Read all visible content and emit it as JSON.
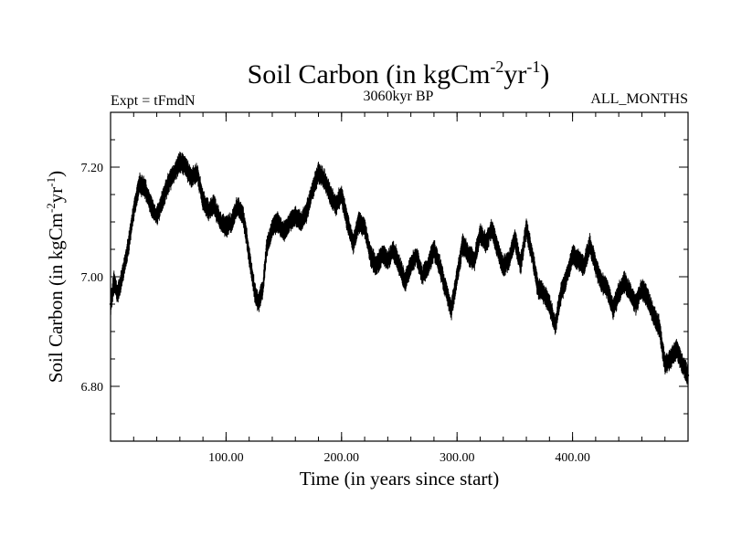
{
  "chart_data": {
    "type": "line",
    "title": {
      "text": "Soil Carbon (in kgCm",
      "sup1": "-2",
      "mid": "yr",
      "sup2": "-1",
      "end": ")"
    },
    "subtitle_left": "Expt = tFmdN",
    "subtitle_center": "3060kyr BP",
    "subtitle_right": "ALL_MONTHS",
    "xlabel": "Time (in years since start)",
    "ylabel": {
      "text": "Soil Carbon (in kgCm",
      "sup1": "-2",
      "mid": "yr",
      "sup2": "-1",
      "end": ")"
    },
    "xlim": [
      0,
      500
    ],
    "ylim": [
      6.7,
      7.3
    ],
    "x_ticks": [
      100,
      200,
      300,
      400
    ],
    "x_tick_labels": [
      "100.00",
      "200.00",
      "300.00",
      "400.00"
    ],
    "x_minor_step": 20,
    "y_ticks": [
      6.8,
      7.0,
      7.2
    ],
    "y_tick_labels": [
      "6.80",
      "7.00",
      "7.20"
    ],
    "y_minor_step": 0.05,
    "grid": false,
    "line_color": "#000000",
    "series": [
      {
        "x": [
          0,
          3,
          6,
          10,
          15,
          20,
          25,
          30,
          35,
          40,
          45,
          50,
          55,
          60,
          65,
          70,
          75,
          80,
          85,
          90,
          95,
          100,
          105,
          110,
          115,
          120,
          125,
          128,
          132,
          135,
          140,
          145,
          150,
          155,
          160,
          165,
          170,
          175,
          180,
          185,
          190,
          195,
          200,
          205,
          210,
          215,
          220,
          225,
          230,
          235,
          240,
          245,
          250,
          255,
          260,
          265,
          270,
          275,
          280,
          285,
          290,
          295,
          300,
          305,
          310,
          315,
          320,
          325,
          330,
          335,
          340,
          345,
          350,
          355,
          360,
          365,
          370,
          375,
          380,
          385,
          390,
          395,
          400,
          405,
          410,
          415,
          420,
          425,
          430,
          435,
          440,
          445,
          450,
          455,
          460,
          465,
          470,
          475,
          480,
          485,
          490,
          495,
          500
        ],
        "y": [
          6.95,
          6.99,
          6.97,
          7.0,
          7.05,
          7.12,
          7.17,
          7.16,
          7.13,
          7.11,
          7.14,
          7.17,
          7.19,
          7.21,
          7.2,
          7.18,
          7.19,
          7.14,
          7.12,
          7.13,
          7.1,
          7.09,
          7.1,
          7.13,
          7.11,
          7.04,
          6.97,
          6.95,
          6.98,
          7.05,
          7.09,
          7.1,
          7.08,
          7.1,
          7.11,
          7.1,
          7.12,
          7.16,
          7.19,
          7.18,
          7.15,
          7.13,
          7.15,
          7.1,
          7.06,
          7.1,
          7.09,
          7.04,
          7.02,
          7.04,
          7.03,
          7.05,
          7.02,
          6.99,
          7.02,
          7.04,
          7.0,
          7.02,
          7.05,
          7.02,
          6.98,
          6.94,
          7.0,
          7.06,
          7.04,
          7.03,
          7.08,
          7.06,
          7.09,
          7.05,
          7.02,
          7.03,
          7.07,
          7.02,
          7.09,
          7.04,
          6.98,
          6.97,
          6.95,
          6.91,
          6.97,
          7.0,
          7.04,
          7.03,
          7.02,
          7.06,
          7.02,
          6.99,
          6.98,
          6.94,
          6.97,
          6.99,
          6.97,
          6.95,
          6.98,
          6.96,
          6.93,
          6.91,
          6.84,
          6.85,
          6.87,
          6.84,
          6.82
        ]
      }
    ]
  }
}
